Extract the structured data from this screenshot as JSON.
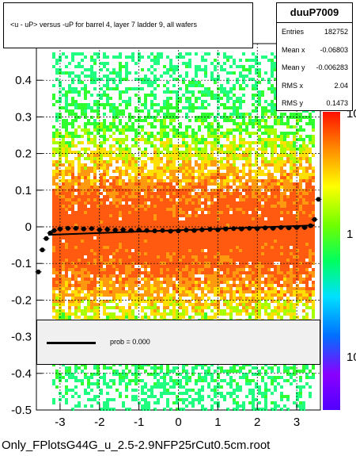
{
  "title": "<u - uP>       versus  -uP for barrel 4, layer 7 ladder 9, all wafers",
  "stats": {
    "name": "duuP7009",
    "rows": [
      {
        "key": "Entries",
        "value": "182752"
      },
      {
        "key": "Mean x",
        "value": "-0.06803"
      },
      {
        "key": "Mean y",
        "value": "-0.006283"
      },
      {
        "key": "RMS x",
        "value": "2.04"
      },
      {
        "key": "RMS y",
        "value": "0.1473"
      }
    ]
  },
  "fit_legend": {
    "label": "prob = 0.000"
  },
  "footer": "Only_FPlotsG44G_u_2.5-2.9NFP25rCut0.5cm.root",
  "chart_data": {
    "type": "heatmap",
    "xlim": [
      -3.6,
      3.6
    ],
    "ylim": [
      -0.5,
      0.5
    ],
    "x_ticks": [
      -3,
      -2,
      -1,
      0,
      1,
      2,
      3
    ],
    "y_ticks": [
      -0.5,
      -0.4,
      -0.3,
      -0.2,
      -0.1,
      0,
      0.1,
      0.2,
      0.3,
      0.4
    ],
    "y_tick_labels": [
      "-0.5",
      "-0.4",
      "-0.3",
      "-0.2",
      "-0.1",
      "0",
      "0.1",
      "0.2",
      "0.3",
      "0.4"
    ],
    "x_tick_labels": [
      "-3",
      "-2",
      "-1",
      "0",
      "1",
      "2",
      "3"
    ],
    "colorbar_labels": [
      "10",
      "1",
      "10"
    ],
    "grid": true,
    "profile": {
      "x": [
        -3.55,
        -3.45,
        -3.35,
        -3.25,
        -3.15,
        -3.0,
        -2.8,
        -2.6,
        -2.4,
        -2.2,
        -2.0,
        -1.8,
        -1.6,
        -1.4,
        -1.2,
        -1.0,
        -0.8,
        -0.6,
        -0.4,
        -0.2,
        0.0,
        0.2,
        0.4,
        0.6,
        0.8,
        1.0,
        1.2,
        1.4,
        1.6,
        1.8,
        2.0,
        2.2,
        2.4,
        2.6,
        2.8,
        3.0,
        3.2,
        3.35,
        3.45,
        3.55
      ],
      "y": [
        -0.123,
        -0.063,
        -0.032,
        -0.017,
        -0.01,
        -0.006,
        -0.004,
        -0.004,
        -0.006,
        -0.005,
        -0.008,
        -0.007,
        -0.009,
        -0.008,
        -0.01,
        -0.009,
        -0.01,
        -0.011,
        -0.01,
        -0.012,
        -0.011,
        -0.009,
        -0.01,
        -0.008,
        -0.007,
        -0.008,
        -0.006,
        -0.005,
        -0.006,
        -0.004,
        -0.005,
        -0.003,
        -0.004,
        -0.002,
        -0.003,
        -0.002,
        -0.002,
        0.003,
        0.02,
        0.075
      ]
    },
    "fit_line": {
      "x": [
        -3.3,
        3.45
      ],
      "y": [
        -0.022,
        0.004
      ]
    }
  }
}
